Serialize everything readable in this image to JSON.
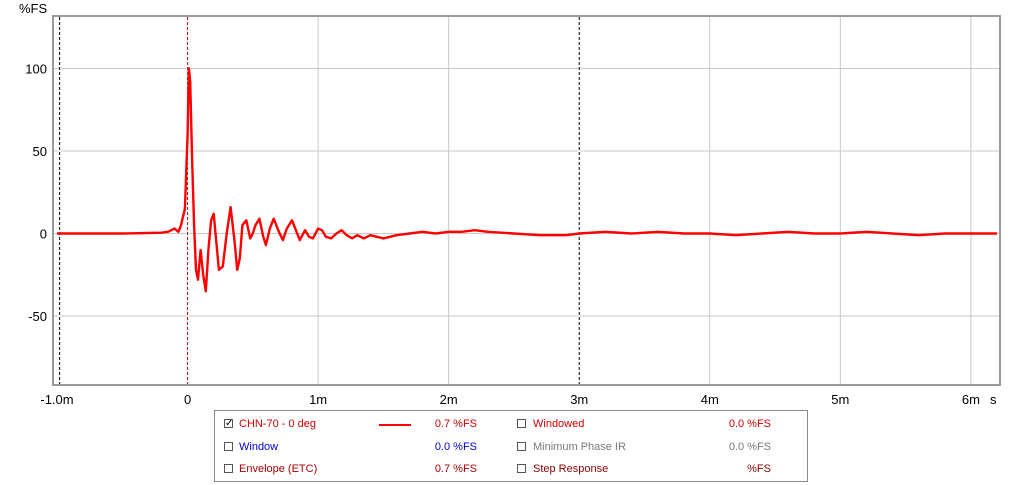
{
  "chart_data": {
    "type": "line",
    "ylabel": "%FS",
    "xunit": "s",
    "xlim": [
      -1.0,
      6.2
    ],
    "ylim": [
      -90,
      130
    ],
    "xticks": [
      {
        "v": -1.0,
        "label": "-1.0m"
      },
      {
        "v": 0,
        "label": "0"
      },
      {
        "v": 1,
        "label": "1m"
      },
      {
        "v": 2,
        "label": "2m"
      },
      {
        "v": 3,
        "label": "3m"
      },
      {
        "v": 4,
        "label": "4m"
      },
      {
        "v": 5,
        "label": "5m"
      },
      {
        "v": 6,
        "label": "6m"
      }
    ],
    "yticks": [
      {
        "v": 100,
        "label": "100"
      },
      {
        "v": 50,
        "label": "50"
      },
      {
        "v": 0,
        "label": "0"
      },
      {
        "v": -50,
        "label": "-50"
      }
    ],
    "grid": true,
    "markers": [
      {
        "x": -0.98,
        "color": "#000000"
      },
      {
        "x": 0.0,
        "color": "#cc0000"
      },
      {
        "x": 3.0,
        "color": "#000000"
      }
    ],
    "series": [
      {
        "name": "CHN-70 - 0 deg",
        "color": "#ff0000",
        "x": [
          -1.0,
          -0.5,
          -0.3,
          -0.2,
          -0.15,
          -0.1,
          -0.07,
          -0.05,
          -0.02,
          0.0,
          0.01,
          0.02,
          0.035,
          0.05,
          0.065,
          0.08,
          0.1,
          0.12,
          0.14,
          0.16,
          0.18,
          0.2,
          0.22,
          0.24,
          0.27,
          0.3,
          0.33,
          0.36,
          0.38,
          0.4,
          0.42,
          0.45,
          0.48,
          0.5,
          0.52,
          0.55,
          0.58,
          0.6,
          0.63,
          0.66,
          0.7,
          0.73,
          0.76,
          0.8,
          0.83,
          0.86,
          0.9,
          0.93,
          0.96,
          1.0,
          1.03,
          1.06,
          1.1,
          1.14,
          1.18,
          1.22,
          1.26,
          1.3,
          1.35,
          1.4,
          1.45,
          1.5,
          1.55,
          1.6,
          1.7,
          1.8,
          1.9,
          2.0,
          2.1,
          2.2,
          2.3,
          2.5,
          2.7,
          2.9,
          3.0,
          3.2,
          3.4,
          3.6,
          3.8,
          4.0,
          4.2,
          4.4,
          4.6,
          4.8,
          5.0,
          5.2,
          5.4,
          5.6,
          5.8,
          6.0,
          6.2
        ],
        "y": [
          0,
          0,
          0.3,
          0.5,
          1,
          3,
          1,
          5,
          15,
          60,
          100,
          92,
          45,
          5,
          -22,
          -28,
          -10,
          -25,
          -35,
          -10,
          8,
          12,
          -5,
          -22,
          -20,
          0,
          16,
          -5,
          -22,
          -15,
          5,
          8,
          -3,
          0,
          5,
          9,
          -2,
          -7,
          3,
          9,
          1,
          -4,
          3,
          8,
          2,
          -4,
          2,
          -2,
          -3,
          3,
          2,
          -2,
          -3,
          0,
          2,
          -1,
          -3,
          -1,
          -3,
          -1,
          -2,
          -3,
          -2,
          -1,
          0,
          1,
          0,
          1,
          1,
          2,
          1,
          0,
          -1,
          -1,
          0,
          1,
          0,
          1,
          0,
          0,
          -1,
          0,
          1,
          0,
          0,
          1,
          0,
          -1,
          0,
          0,
          0
        ]
      }
    ]
  },
  "legend": {
    "rows": [
      {
        "left": {
          "label": "CHN-70 - 0 deg",
          "checked": true,
          "color": "#cc0000",
          "value": "0.7 %FS",
          "value_color": "#cc0000",
          "swatch": "#ff0000"
        },
        "right": {
          "label": "Windowed",
          "checked": false,
          "color": "#cc0000",
          "value": "0.0 %FS",
          "value_color": "#cc0000"
        }
      },
      {
        "left": {
          "label": "Window",
          "checked": false,
          "color": "#0000cc",
          "value": "0.0 %FS",
          "value_color": "#0000cc"
        },
        "right": {
          "label": "Minimum Phase IR",
          "checked": false,
          "color": "#7a7a7a",
          "value": "0.0 %FS",
          "value_color": "#7a7a7a"
        }
      },
      {
        "left": {
          "label": "Envelope (ETC)",
          "checked": false,
          "color": "#aa0000",
          "value": "0.7 %FS",
          "value_color": "#aa0000"
        },
        "right": {
          "label": "Step Response",
          "checked": false,
          "color": "#880000",
          "value": "%FS",
          "value_color": "#880000"
        }
      }
    ]
  }
}
